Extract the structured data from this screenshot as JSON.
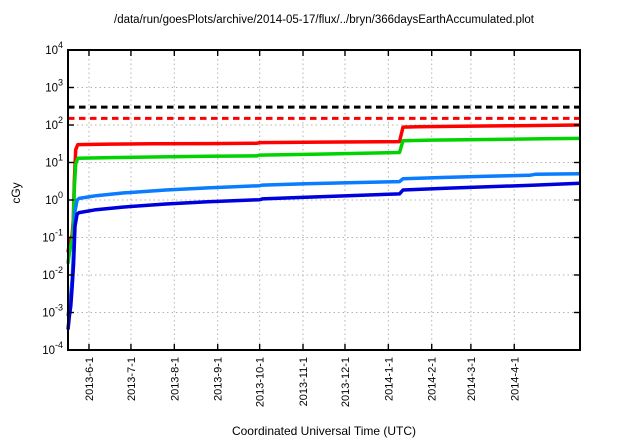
{
  "chart": {
    "title": "/data/run/goesPlots/archive/2014-05-17/flux/../bryn/366daysEarthAccumulated.plot",
    "xlabel": "Coordinated Universal Time (UTC)",
    "ylabel": "cGy"
  },
  "chart_data": {
    "type": "line",
    "title": "/data/run/goesPlots/archive/2014-05-17/flux/../bryn/366daysEarthAccumulated.plot",
    "xlabel": "Coordinated Universal Time (UTC)",
    "ylabel": "cGy",
    "grid": true,
    "x_axis": {
      "unit": "days since 2013-05-17",
      "range": [
        0,
        366
      ],
      "ticks": [
        {
          "label": "2013-6-1",
          "day": 15
        },
        {
          "label": "2013-7-1",
          "day": 45
        },
        {
          "label": "2013-8-1",
          "day": 76
        },
        {
          "label": "2013-9-1",
          "day": 107
        },
        {
          "label": "2013-10-1",
          "day": 137
        },
        {
          "label": "2013-11-1",
          "day": 168
        },
        {
          "label": "2013-12-1",
          "day": 198
        },
        {
          "label": "2014-1-1",
          "day": 229
        },
        {
          "label": "2014-2-1",
          "day": 260
        },
        {
          "label": "2014-3-1",
          "day": 288
        },
        {
          "label": "2014-4-1",
          "day": 319
        }
      ]
    },
    "y_axis": {
      "scale": "log",
      "range": [
        0.0001,
        10000.0
      ],
      "tick_exponents": [
        4,
        3,
        2,
        1,
        0,
        -1,
        -2,
        -3,
        -4
      ],
      "label": "cGy"
    },
    "thresholds": [
      {
        "name": "black-dashed-limit",
        "value": 300,
        "color": "#000000",
        "style": "dashed"
      },
      {
        "name": "red-dashed-limit",
        "value": 150,
        "color": "#ff0000",
        "style": "dashed"
      }
    ],
    "series": [
      {
        "name": "red-series",
        "color": "#ff0000",
        "points": [
          [
            0,
            0.04
          ],
          [
            1,
            0.07
          ],
          [
            2,
            0.09
          ],
          [
            3,
            0.12
          ],
          [
            3.8,
            0.3
          ],
          [
            4.5,
            3
          ],
          [
            5.5,
            22
          ],
          [
            7,
            30
          ],
          [
            30,
            31
          ],
          [
            60,
            31.5
          ],
          [
            100,
            32
          ],
          [
            135,
            32.5
          ],
          [
            137,
            34
          ],
          [
            180,
            35
          ],
          [
            237,
            36
          ],
          [
            239.5,
            88
          ],
          [
            250,
            90
          ],
          [
            280,
            93
          ],
          [
            320,
            96
          ],
          [
            366,
            100
          ]
        ]
      },
      {
        "name": "green-series",
        "color": "#00d400",
        "points": [
          [
            0,
            0.02
          ],
          [
            1,
            0.04
          ],
          [
            2,
            0.06
          ],
          [
            3,
            0.09
          ],
          [
            3.8,
            0.2
          ],
          [
            4.5,
            2
          ],
          [
            5.5,
            9
          ],
          [
            7,
            13
          ],
          [
            30,
            13.5
          ],
          [
            60,
            14
          ],
          [
            100,
            14.7
          ],
          [
            135,
            15
          ],
          [
            137,
            15.8
          ],
          [
            180,
            16.8
          ],
          [
            237,
            18.5
          ],
          [
            239.5,
            38
          ],
          [
            260,
            39.5
          ],
          [
            300,
            41
          ],
          [
            340,
            43
          ],
          [
            366,
            44
          ]
        ]
      },
      {
        "name": "cyan-series",
        "color": "#0a7cff",
        "points": [
          [
            0,
            0.0008
          ],
          [
            1,
            0.0015
          ],
          [
            2,
            0.003
          ],
          [
            3,
            0.008
          ],
          [
            4,
            0.05
          ],
          [
            5,
            0.5
          ],
          [
            6.5,
            1.0
          ],
          [
            8,
            1.1
          ],
          [
            20,
            1.3
          ],
          [
            40,
            1.55
          ],
          [
            70,
            1.85
          ],
          [
            100,
            2.1
          ],
          [
            137,
            2.4
          ],
          [
            139,
            2.5
          ],
          [
            170,
            2.7
          ],
          [
            200,
            2.9
          ],
          [
            237,
            3.1
          ],
          [
            239.5,
            3.7
          ],
          [
            270,
            4.0
          ],
          [
            300,
            4.3
          ],
          [
            330,
            4.55
          ],
          [
            334,
            4.85
          ],
          [
            366,
            5.0
          ]
        ]
      },
      {
        "name": "blue-series",
        "color": "#0000dd",
        "points": [
          [
            0,
            0.00035
          ],
          [
            1,
            0.0008
          ],
          [
            2,
            0.0015
          ],
          [
            3,
            0.005
          ],
          [
            4,
            0.02
          ],
          [
            5,
            0.2
          ],
          [
            6.5,
            0.42
          ],
          [
            8,
            0.46
          ],
          [
            20,
            0.55
          ],
          [
            40,
            0.65
          ],
          [
            70,
            0.78
          ],
          [
            100,
            0.9
          ],
          [
            137,
            1.02
          ],
          [
            139,
            1.07
          ],
          [
            170,
            1.18
          ],
          [
            200,
            1.3
          ],
          [
            237,
            1.45
          ],
          [
            239.5,
            1.85
          ],
          [
            270,
            2.05
          ],
          [
            300,
            2.25
          ],
          [
            334,
            2.5
          ],
          [
            366,
            2.8
          ]
        ]
      }
    ],
    "style": {
      "grid_color": "#b3b3b3",
      "border_color": "#000000",
      "background": "#ffffff"
    }
  }
}
